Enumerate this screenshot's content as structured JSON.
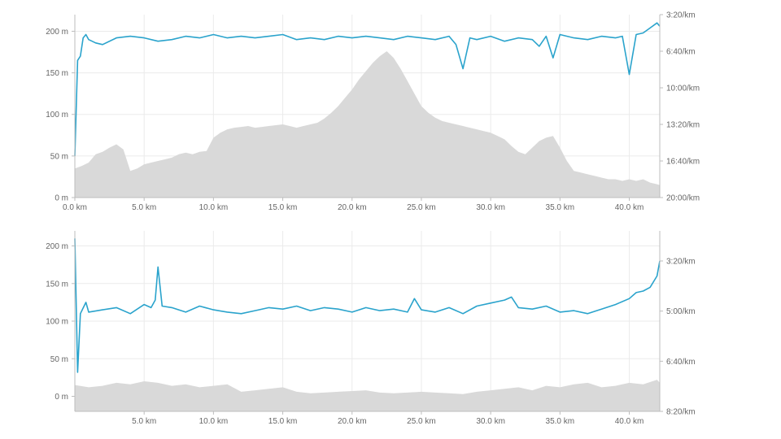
{
  "chart_data": [
    {
      "type": "line",
      "title": "",
      "xlabel": "",
      "x_tick_labels": [
        "0.0 km",
        "5.0 km",
        "10.0 km",
        "15.0 km",
        "20.0 km",
        "25.0 km",
        "30.0 km",
        "35.0 km",
        "40.0 km"
      ],
      "x_ticks": [
        0,
        5,
        10,
        15,
        20,
        25,
        30,
        35,
        40
      ],
      "xlim": [
        0,
        42.2
      ],
      "y_left": {
        "tick_labels": [
          "0 m",
          "50 m",
          "100 m",
          "150 m",
          "200 m"
        ],
        "ticks": [
          0,
          50,
          100,
          150,
          200
        ],
        "ylim": [
          0,
          220
        ]
      },
      "y_right": {
        "tick_labels": [
          "3:20/km",
          "6:40/km",
          "10:00/km",
          "13:20/km",
          "16:40/km",
          "20:00/km"
        ],
        "ticks_seconds": [
          200,
          400,
          600,
          800,
          1000,
          1200
        ],
        "ylim_seconds": [
          200,
          1200
        ],
        "inverted": true
      },
      "grid": true,
      "series": [
        {
          "kind": "area",
          "axis": "left",
          "color": "#d9d9d9",
          "x": [
            0,
            0.5,
            1,
            1.5,
            2,
            2.5,
            3,
            3.5,
            4,
            4.5,
            5,
            5.5,
            6,
            6.5,
            7,
            7.5,
            8,
            8.5,
            9,
            9.5,
            10,
            10.5,
            11,
            11.5,
            12,
            12.5,
            13,
            13.5,
            14,
            14.5,
            15,
            15.5,
            16,
            16.5,
            17,
            17.5,
            18,
            18.5,
            19,
            19.5,
            20,
            20.5,
            21,
            21.5,
            22,
            22.5,
            23,
            23.5,
            24,
            24.5,
            25,
            25.5,
            26,
            26.5,
            27,
            27.5,
            28,
            28.5,
            29,
            29.5,
            30,
            30.5,
            31,
            31.5,
            32,
            32.5,
            33,
            33.5,
            34,
            34.5,
            35,
            35.5,
            36,
            36.5,
            37,
            37.5,
            38,
            38.5,
            39,
            39.5,
            40,
            40.5,
            41,
            41.5,
            42,
            42.2
          ],
          "values": [
            35,
            38,
            42,
            52,
            55,
            60,
            64,
            58,
            32,
            35,
            40,
            42,
            44,
            46,
            48,
            52,
            54,
            52,
            55,
            56,
            72,
            78,
            82,
            84,
            85,
            86,
            84,
            85,
            86,
            87,
            88,
            86,
            84,
            86,
            88,
            90,
            95,
            102,
            110,
            120,
            130,
            142,
            152,
            162,
            170,
            176,
            168,
            155,
            140,
            125,
            110,
            102,
            96,
            92,
            90,
            88,
            86,
            84,
            82,
            80,
            78,
            74,
            70,
            62,
            55,
            52,
            60,
            68,
            72,
            74,
            60,
            44,
            32,
            30,
            28,
            26,
            24,
            22,
            22,
            20,
            22,
            20,
            22,
            18,
            16,
            15
          ]
        },
        {
          "kind": "line",
          "axis": "left",
          "color": "#2aa3cc",
          "x": [
            0,
            0.2,
            0.4,
            0.6,
            0.8,
            1,
            1.5,
            2,
            3,
            4,
            5,
            6,
            7,
            8,
            9,
            10,
            11,
            12,
            13,
            14,
            15,
            16,
            17,
            18,
            19,
            20,
            21,
            22,
            23,
            24,
            25,
            26,
            27,
            27.5,
            28,
            28.5,
            29,
            30,
            31,
            32,
            33,
            33.5,
            34,
            34.5,
            35,
            36,
            37,
            38,
            39,
            39.5,
            40,
            40.5,
            41,
            41.5,
            42,
            42.2
          ],
          "values": [
            50,
            165,
            170,
            192,
            196,
            190,
            186,
            184,
            192,
            194,
            192,
            188,
            190,
            194,
            192,
            196,
            192,
            194,
            192,
            194,
            196,
            190,
            192,
            190,
            194,
            192,
            194,
            192,
            190,
            194,
            192,
            190,
            194,
            184,
            155,
            192,
            190,
            194,
            188,
            192,
            190,
            182,
            194,
            168,
            196,
            192,
            190,
            194,
            192,
            194,
            148,
            196,
            198,
            204,
            210,
            206
          ]
        }
      ]
    },
    {
      "type": "line",
      "title": "",
      "xlabel": "",
      "x_tick_labels": [
        "5.0 km",
        "10.0 km",
        "15.0 km",
        "20.0 km",
        "25.0 km",
        "30.0 km",
        "35.0 km",
        "40.0 km"
      ],
      "x_ticks": [
        5,
        10,
        15,
        20,
        25,
        30,
        35,
        40
      ],
      "xlim": [
        0,
        42.2
      ],
      "y_left": {
        "tick_labels": [
          "0 m",
          "50 m",
          "100 m",
          "150 m",
          "200 m"
        ],
        "ticks": [
          0,
          50,
          100,
          150,
          200
        ],
        "ylim": [
          -20,
          220
        ]
      },
      "y_right": {
        "tick_labels": [
          "3:20/km",
          "5:00/km",
          "6:40/km",
          "8:20/km"
        ],
        "ticks_seconds": [
          200,
          300,
          400,
          500
        ],
        "ylim_seconds": [
          140,
          500
        ],
        "inverted": true
      },
      "grid": true,
      "series": [
        {
          "kind": "area",
          "axis": "left",
          "color": "#d9d9d9",
          "x": [
            0,
            1,
            2,
            3,
            4,
            5,
            6,
            7,
            8,
            9,
            10,
            11,
            12,
            13,
            14,
            15,
            16,
            17,
            18,
            19,
            20,
            21,
            22,
            23,
            24,
            25,
            26,
            27,
            28,
            29,
            30,
            31,
            32,
            33,
            34,
            35,
            36,
            37,
            38,
            39,
            40,
            41,
            42,
            42.2
          ],
          "values": [
            15,
            12,
            14,
            18,
            16,
            20,
            18,
            14,
            16,
            12,
            14,
            16,
            6,
            8,
            10,
            12,
            6,
            4,
            5,
            6,
            7,
            8,
            5,
            4,
            5,
            6,
            5,
            4,
            3,
            6,
            8,
            10,
            12,
            8,
            14,
            12,
            16,
            18,
            12,
            14,
            18,
            16,
            22,
            18
          ]
        },
        {
          "kind": "line",
          "axis": "left",
          "color": "#2aa3cc",
          "x": [
            0,
            0.2,
            0.4,
            0.8,
            1,
            2,
            3,
            4,
            5,
            5.5,
            5.8,
            6,
            6.3,
            7,
            8,
            9,
            10,
            11,
            12,
            13,
            14,
            15,
            16,
            17,
            18,
            19,
            20,
            21,
            22,
            23,
            24,
            24.5,
            25,
            26,
            27,
            28,
            29,
            30,
            31,
            31.5,
            32,
            33,
            34,
            35,
            36,
            37,
            38,
            39,
            40,
            40.5,
            41,
            41.5,
            42,
            42.2
          ],
          "values": [
            210,
            32,
            110,
            125,
            112,
            115,
            118,
            110,
            122,
            118,
            128,
            172,
            120,
            118,
            112,
            120,
            115,
            112,
            110,
            114,
            118,
            116,
            120,
            114,
            118,
            116,
            112,
            118,
            114,
            116,
            112,
            130,
            115,
            112,
            118,
            110,
            120,
            124,
            128,
            132,
            118,
            116,
            120,
            112,
            114,
            110,
            116,
            122,
            130,
            138,
            140,
            145,
            160,
            180
          ]
        }
      ]
    }
  ]
}
